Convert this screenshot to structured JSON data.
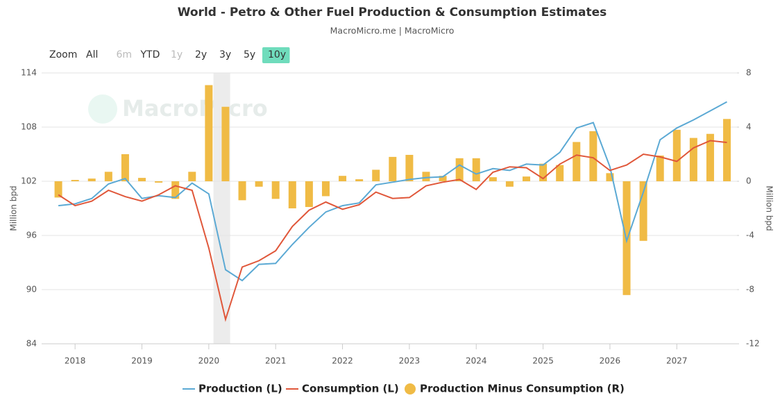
{
  "chart_data": {
    "type": "combo",
    "title": "World - Petro & Other Fuel Production & Consumption Estimates",
    "subtitle": "MacroMicro.me | MacroMicro",
    "watermark": "MacroMicro",
    "zoom_label": "Zoom",
    "zoom_buttons": [
      "All",
      "6m",
      "YTD",
      "1y",
      "2y",
      "3y",
      "5y",
      "10y"
    ],
    "active_zoom_index": 7,
    "disabled_zoom_indices": [
      1,
      3
    ],
    "y_label": "Million bpd",
    "y2_label": "Million bpd",
    "x": [
      2017.75,
      2018.0,
      2018.25,
      2018.5,
      2018.75,
      2019.0,
      2019.25,
      2019.5,
      2019.75,
      2020.0,
      2020.25,
      2020.5,
      2020.75,
      2021.0,
      2021.25,
      2021.5,
      2021.75,
      2022.0,
      2022.25,
      2022.5,
      2022.75,
      2023.0,
      2023.25,
      2023.5,
      2023.75,
      2024.0,
      2024.25,
      2024.5,
      2024.75,
      2025.0,
      2025.25,
      2025.5,
      2025.75,
      2026.0,
      2026.25,
      2026.5,
      2026.75,
      2027.0,
      2027.25,
      2027.5,
      2027.75
    ],
    "xlim": [
      2017.5,
      2027.9
    ],
    "xticks": [
      2018,
      2019,
      2020,
      2021,
      2022,
      2023,
      2024,
      2025,
      2026,
      2027
    ],
    "ylim": [
      84,
      114
    ],
    "yticks": [
      84,
      90,
      96,
      102,
      108,
      114
    ],
    "y2lim": [
      -12,
      8
    ],
    "y2ticks": [
      -12,
      -8,
      -4,
      0,
      4,
      8
    ],
    "recession_shading": [
      2020.07,
      2020.32
    ],
    "grid": true,
    "series": [
      {
        "name": "Production (L)",
        "type": "line",
        "color": "#5ba9d4",
        "values": [
          99.3,
          99.5,
          100.1,
          101.7,
          102.3,
          100.1,
          100.4,
          100.2,
          101.8,
          100.6,
          92.2,
          91.0,
          92.8,
          92.9,
          95.0,
          96.9,
          98.6,
          99.3,
          99.6,
          101.6,
          101.9,
          102.2,
          102.4,
          102.5,
          103.8,
          102.8,
          103.4,
          103.2,
          103.9,
          103.8,
          105.2,
          107.9,
          108.5,
          103.6,
          95.4,
          100.8,
          106.6,
          107.9,
          108.8,
          109.8,
          110.8
        ]
      },
      {
        "name": "Consumption (L)",
        "type": "line",
        "color": "#e0573a",
        "values": [
          100.5,
          99.3,
          99.8,
          101.0,
          100.3,
          99.8,
          100.5,
          101.5,
          101.0,
          94.6,
          86.7,
          92.5,
          93.2,
          94.3,
          97.0,
          98.8,
          99.7,
          98.9,
          99.4,
          100.8,
          100.1,
          100.2,
          101.5,
          101.9,
          102.2,
          101.1,
          103.0,
          103.6,
          103.5,
          102.3,
          103.9,
          104.9,
          104.6,
          103.2,
          103.8,
          105.0,
          104.7,
          104.2,
          105.7,
          106.5,
          106.3
        ]
      },
      {
        "name": "Production Minus Consumption (R)",
        "type": "bar",
        "axis": "y2",
        "color": "#f0bb45",
        "values": [
          -1.2,
          0.1,
          0.2,
          0.7,
          2.0,
          0.25,
          -0.1,
          -1.3,
          0.7,
          7.1,
          5.5,
          -1.4,
          -0.4,
          -1.3,
          -2.0,
          -1.9,
          -1.1,
          0.4,
          0.15,
          0.85,
          1.8,
          1.95,
          0.7,
          0.4,
          1.7,
          1.7,
          0.3,
          -0.4,
          0.35,
          1.3,
          1.2,
          2.9,
          3.7,
          0.6,
          -8.4,
          -4.4,
          1.9,
          3.8,
          3.2,
          3.5,
          4.6
        ]
      }
    ]
  }
}
